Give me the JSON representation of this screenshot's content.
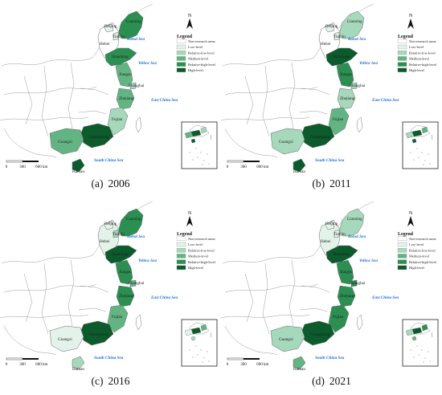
{
  "legend": {
    "title": "Legend",
    "items": [
      {
        "label": "Non-research areas",
        "color": "#ffffff"
      },
      {
        "label": "Low-level",
        "color": "#e3f3ea"
      },
      {
        "label": "Relative-low-level",
        "color": "#a6d8bb"
      },
      {
        "label": "Medium-level",
        "color": "#62b582"
      },
      {
        "label": "Relative-high-level",
        "color": "#2b8f52"
      },
      {
        "label": "High-level",
        "color": "#0b5b2c"
      }
    ]
  },
  "seas": {
    "bohai": "Bohai Sea",
    "yellow": "Yellow Sea",
    "east": "East China Sea",
    "south": "South China Sea"
  },
  "compass": "N",
  "scale": {
    "ticks": [
      "0",
      "300",
      "600"
    ],
    "unit": "km"
  },
  "provinces": [
    "Liaoning",
    "Beijing",
    "Tianjin",
    "Hebei",
    "Shandong",
    "Jiangsu",
    "Shanghai",
    "Zhejiang",
    "Fujian",
    "Guangdong",
    "Guangxi",
    "Hainan"
  ],
  "panels": [
    {
      "label": "(a)",
      "year": "2006",
      "levels": {
        "Liaoning": 4,
        "Beijing": 1,
        "Tianjin": 1,
        "Hebei": 0,
        "Shandong": 4,
        "Jiangsu": 3,
        "Shanghai": 2,
        "Zhejiang": 3,
        "Fujian": 2,
        "Guangdong": 5,
        "Guangxi": 3,
        "Hainan": 5
      }
    },
    {
      "label": "(b)",
      "year": "2011",
      "levels": {
        "Liaoning": 2,
        "Beijing": 1,
        "Tianjin": 1,
        "Hebei": 0,
        "Shandong": 5,
        "Jiangsu": 4,
        "Shanghai": 2,
        "Zhejiang": 2,
        "Fujian": 3,
        "Guangdong": 5,
        "Guangxi": 2,
        "Hainan": 5
      }
    },
    {
      "label": "(c)",
      "year": "2016",
      "levels": {
        "Liaoning": 4,
        "Beijing": 1,
        "Tianjin": 2,
        "Hebei": 1,
        "Shandong": 5,
        "Jiangsu": 4,
        "Shanghai": 3,
        "Zhejiang": 4,
        "Fujian": 3,
        "Guangdong": 5,
        "Guangxi": 1,
        "Hainan": 2
      }
    },
    {
      "label": "(d)",
      "year": "2021",
      "levels": {
        "Liaoning": 2,
        "Beijing": 1,
        "Tianjin": 1,
        "Hebei": 1,
        "Shandong": 5,
        "Jiangsu": 4,
        "Shanghai": 4,
        "Zhejiang": 4,
        "Fujian": 4,
        "Guangdong": 5,
        "Guangxi": 2,
        "Hainan": 3
      }
    }
  ]
}
